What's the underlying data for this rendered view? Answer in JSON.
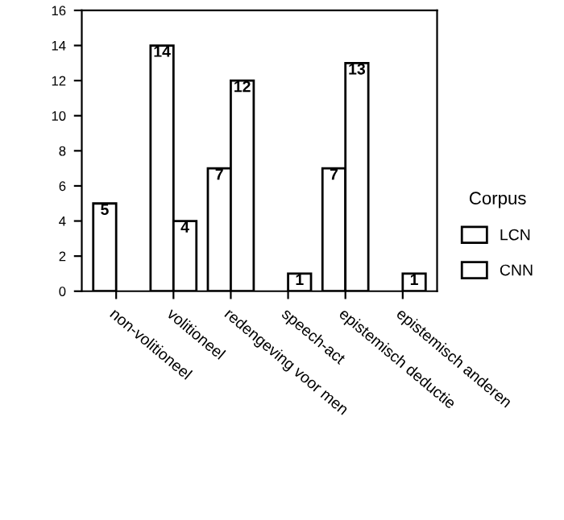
{
  "chart_data": {
    "type": "bar",
    "categories": [
      "non-volitioneel",
      "volitioneel",
      "redengeving voor men",
      "speech-act",
      "epistemisch deductie",
      "epistemisch anderen"
    ],
    "series": [
      {
        "name": "LCN",
        "color": "#ffffff",
        "values": [
          5,
          14,
          7,
          0,
          7,
          0
        ],
        "value_labels": [
          "5",
          "14",
          "7",
          null,
          "7",
          null
        ]
      },
      {
        "name": "CNN",
        "color": "#ffffff",
        "values": [
          0,
          4,
          12,
          1,
          13,
          1
        ],
        "value_labels": [
          null,
          "4",
          "12",
          "1",
          "13",
          "1"
        ]
      }
    ],
    "legend_title": "Corpus",
    "legend": "right",
    "ylim": [
      0,
      16
    ],
    "yticks": [
      0,
      2,
      4,
      6,
      8,
      10,
      12,
      14,
      16
    ],
    "grid": false
  }
}
